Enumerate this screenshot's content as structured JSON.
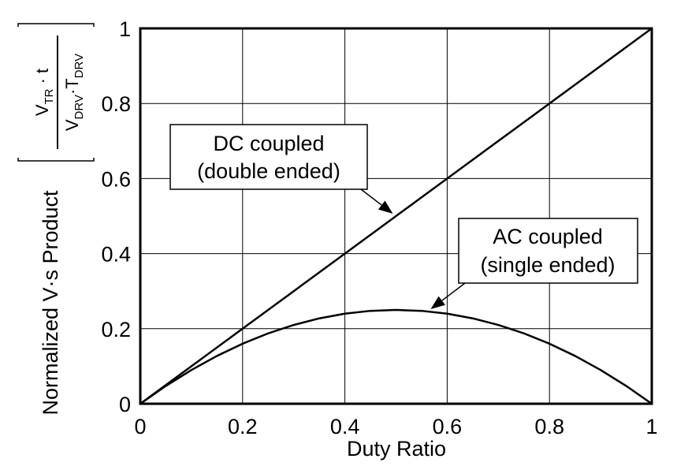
{
  "chart_data": {
    "type": "line",
    "xlabel": "Duty Ratio",
    "ylabel": "Normalized V·s Product",
    "ylabel_formula": {
      "numerator": "V",
      "numerator_sub": "TR",
      "numerator_tail": " · t",
      "denominator_1": "V",
      "denominator_1_sub": "DRV",
      "denominator_mid": "·T",
      "denominator_2_sub": "DRV"
    },
    "xlim": [
      0,
      1
    ],
    "ylim": [
      0,
      1
    ],
    "x_ticks": [
      "0",
      "0.2",
      "0.4",
      "0.6",
      "0.8",
      "1"
    ],
    "y_ticks": [
      "0",
      "0.2",
      "0.4",
      "0.6",
      "0.8",
      "1"
    ],
    "grid": true,
    "series": [
      {
        "name": "DC coupled (double ended)",
        "x": [
          0,
          0.1,
          0.2,
          0.3,
          0.4,
          0.5,
          0.6,
          0.7,
          0.8,
          0.9,
          1.0
        ],
        "y": [
          0,
          0.1,
          0.2,
          0.3,
          0.4,
          0.5,
          0.6,
          0.7,
          0.8,
          0.9,
          1.0
        ]
      },
      {
        "name": "AC coupled (single ended)",
        "x": [
          0,
          0.05,
          0.1,
          0.15,
          0.2,
          0.25,
          0.3,
          0.35,
          0.4,
          0.45,
          0.5,
          0.55,
          0.6,
          0.65,
          0.7,
          0.75,
          0.8,
          0.85,
          0.9,
          0.95,
          1.0
        ],
        "y": [
          0,
          0.0475,
          0.09,
          0.1275,
          0.16,
          0.1875,
          0.21,
          0.2275,
          0.24,
          0.2475,
          0.25,
          0.2475,
          0.24,
          0.2275,
          0.21,
          0.1875,
          0.16,
          0.1275,
          0.09,
          0.0475,
          0
        ]
      }
    ],
    "annotations": [
      {
        "lines": [
          "DC coupled",
          "(double ended)"
        ],
        "target_series": 0,
        "arrow_x": 0.5,
        "arrow_y": 0.5
      },
      {
        "lines": [
          "AC coupled",
          "(single ended)"
        ],
        "target_series": 1,
        "arrow_x": 0.58,
        "arrow_y": 0.2436
      }
    ]
  }
}
